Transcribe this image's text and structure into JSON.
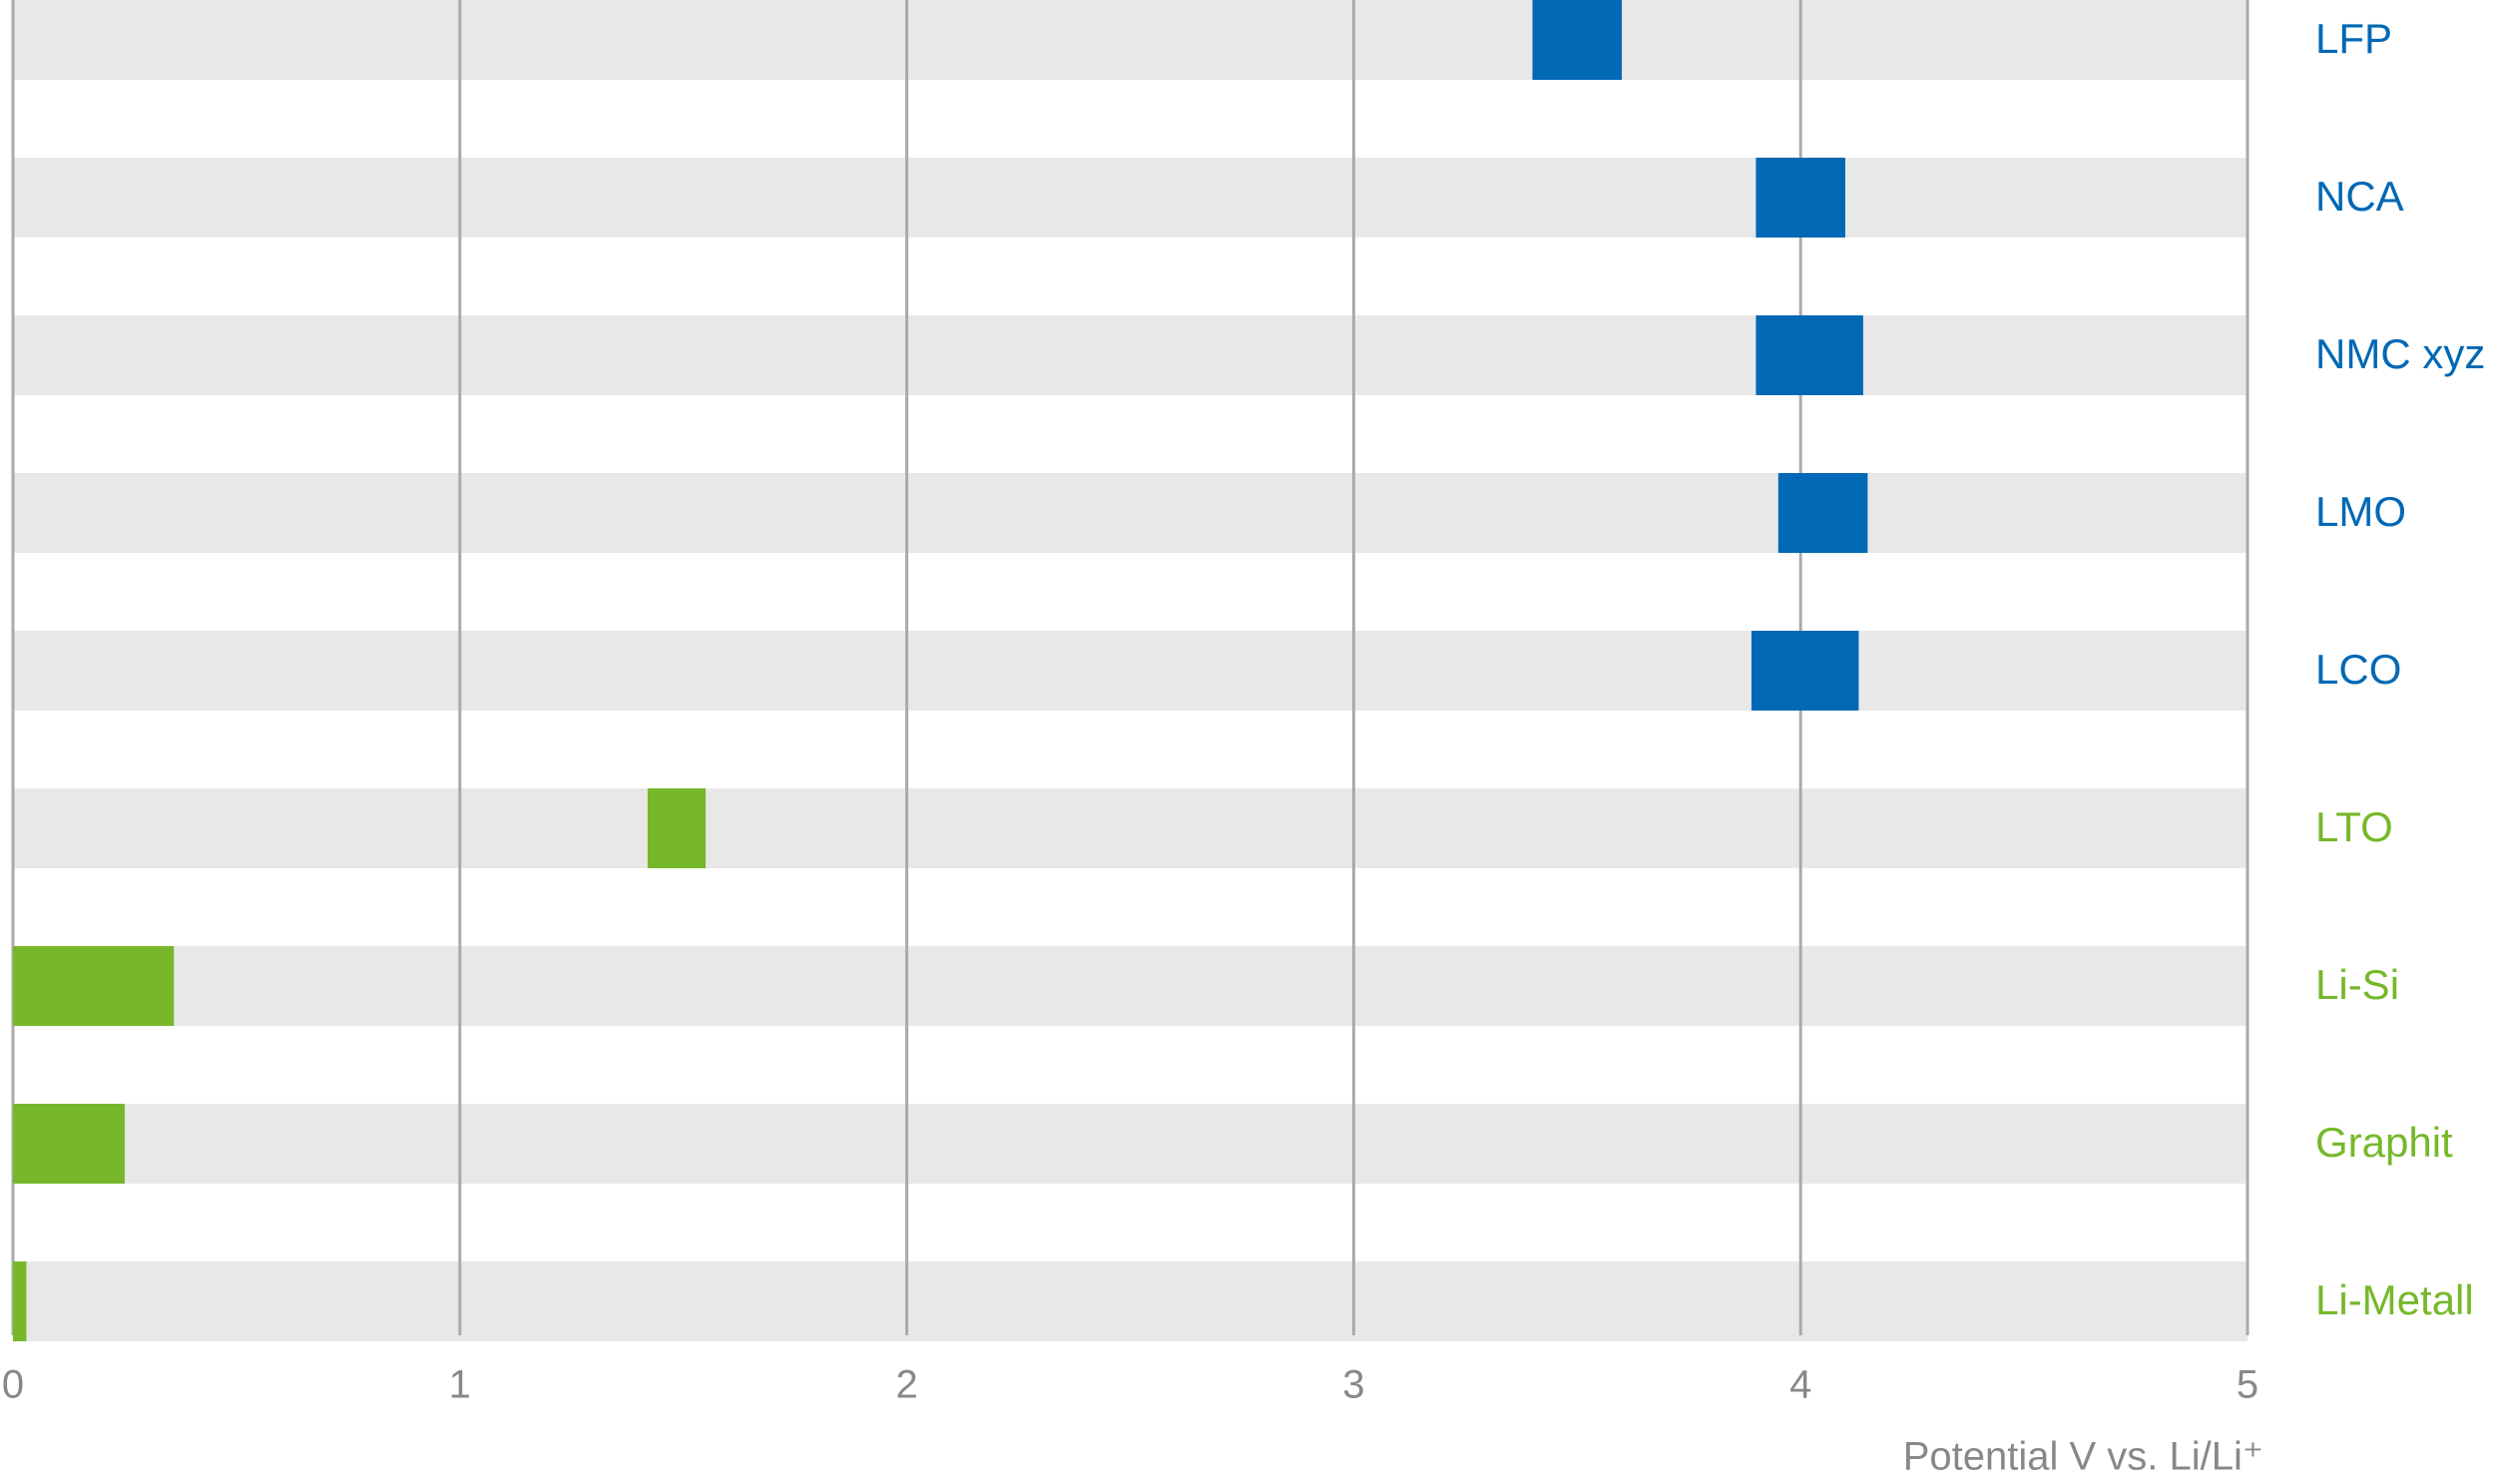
{
  "chart_data": {
    "type": "floating-bar",
    "categories": [
      "LFP",
      "NCA",
      "NMC xyz",
      "LMO",
      "LCO",
      "LTO",
      "Li-Si",
      "Graphit",
      "Li-Metall"
    ],
    "low": [
      3.4,
      3.9,
      3.9,
      3.95,
      3.89,
      1.42,
      0,
      0,
      0
    ],
    "high": [
      3.6,
      4.1,
      4.14,
      4.15,
      4.13,
      1.55,
      0.36,
      0.25,
      0.03
    ],
    "colors": [
      "#0068b4",
      "#0068b4",
      "#0068b4",
      "#0068b4",
      "#0068b4",
      "#76b82a",
      "#76b82a",
      "#76b82a",
      "#76b82a"
    ],
    "band_color": "#e8e8e8",
    "xlim": [
      0,
      5
    ],
    "xticks": [
      0,
      1,
      2,
      3,
      4,
      5
    ],
    "x_label": "Potential V vs. Li/Li⁺",
    "grid": true
  }
}
